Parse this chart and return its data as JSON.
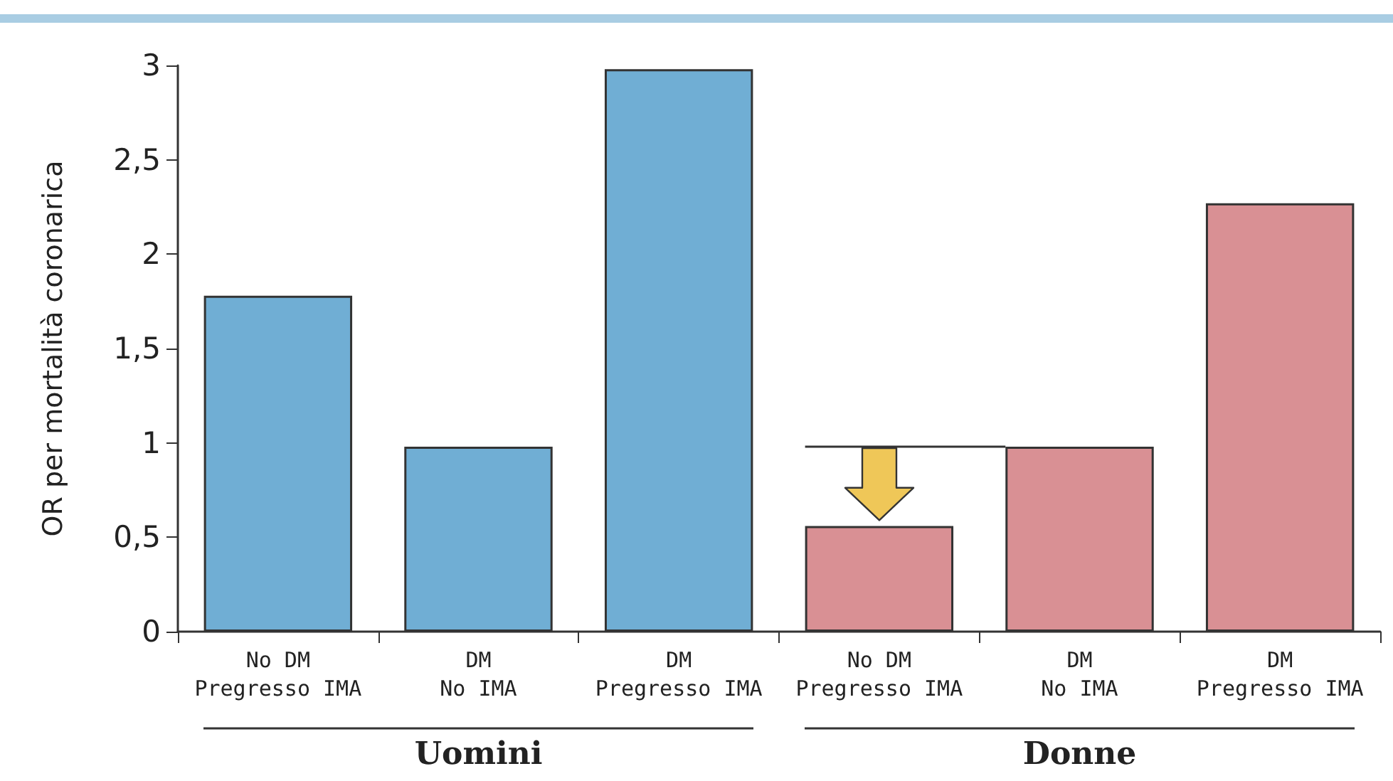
{
  "chart_data": {
    "type": "bar",
    "ylabel": "OR per mortalità coronarica",
    "categories": [
      "No DM\nPregresso IMA",
      "DM\nNo IMA",
      "DM\nPregresso IMA",
      "No DM\nPregresso IMA",
      "DM\nNo IMA",
      "DM\nPregresso IMA"
    ],
    "values": [
      1.78,
      0.98,
      2.98,
      0.56,
      0.98,
      2.27
    ],
    "colors": [
      "#70aed4",
      "#70aed4",
      "#70aed4",
      "#d99094",
      "#d99094",
      "#d99094"
    ],
    "ylim": [
      0,
      3
    ],
    "yticks": [
      0,
      {
        "value": 0.5,
        "label": "0,5"
      },
      1,
      {
        "value": 1.5,
        "label": "1,5"
      },
      2,
      {
        "value": 2.5,
        "label": "2,5"
      },
      3
    ],
    "annotations": [
      "Uomini",
      "Donne"
    ],
    "ref_lines": [
      {
        "axis": "y",
        "value": 0.98,
        "color": "#333333"
      }
    ],
    "grid": false
  }
}
